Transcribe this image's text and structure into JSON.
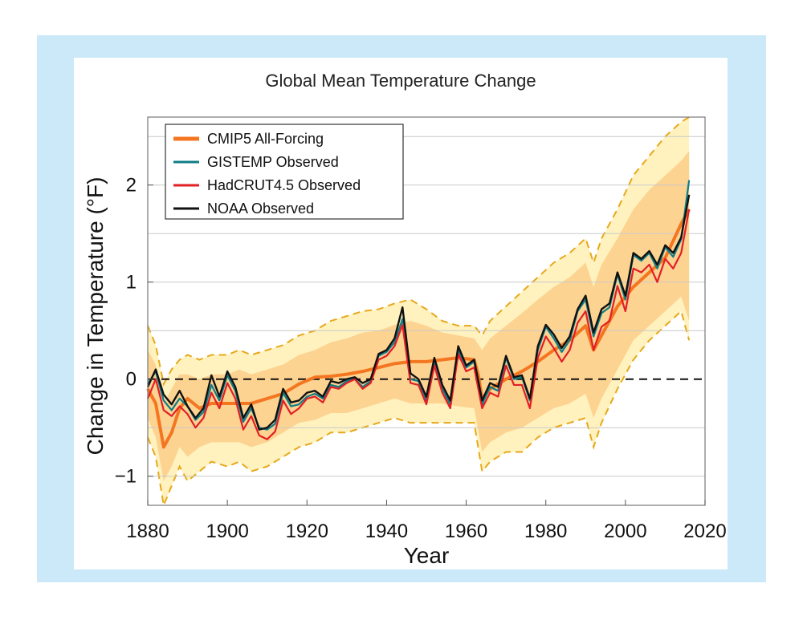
{
  "colors": {
    "frame": "#cbe9f8",
    "outer_band": "#fff2bf",
    "inner_band": "#fdd391",
    "band_edge": "#e7a81a",
    "cmip5": "#f47621",
    "gistemp": "#0f7c86",
    "hadcrut": "#e11f26",
    "noaa": "#111111"
  },
  "chart_data": {
    "type": "line",
    "title": "Global Mean Temperature Change",
    "xlabel": "Year",
    "ylabel": "Change in Temperature (°F)",
    "xlim": [
      1880,
      2020
    ],
    "ylim": [
      -1.3,
      2.7
    ],
    "x_ticks": [
      1880,
      1900,
      1920,
      1940,
      1960,
      1980,
      2000,
      2020
    ],
    "y_ticks": [
      {
        "value": -1,
        "label": "−1"
      },
      {
        "value": 0,
        "label": "0"
      },
      {
        "value": 1,
        "label": "1"
      },
      {
        "value": 2,
        "label": "2"
      }
    ],
    "grid": "horizontal",
    "reference_line": {
      "y": 0,
      "style": "dashed"
    },
    "legend_position": "top-left",
    "series": [
      {
        "name": "CMIP5 All-Forcing",
        "key": "cmip5",
        "x": [
          1880,
          1882,
          1884,
          1886,
          1888,
          1890,
          1893,
          1896,
          1900,
          1903,
          1906,
          1910,
          1914,
          1918,
          1922,
          1926,
          1930,
          1934,
          1938,
          1942,
          1946,
          1950,
          1954,
          1958,
          1962,
          1963,
          1964,
          1966,
          1970,
          1974,
          1978,
          1982,
          1986,
          1990,
          1992,
          1994,
          1998,
          2002,
          2006,
          2010,
          2014,
          2016
        ],
        "y": [
          -0.1,
          -0.25,
          -0.7,
          -0.55,
          -0.3,
          -0.2,
          -0.3,
          -0.25,
          -0.25,
          -0.25,
          -0.25,
          -0.2,
          -0.15,
          -0.05,
          0.02,
          0.03,
          0.05,
          0.08,
          0.12,
          0.16,
          0.18,
          0.18,
          0.2,
          0.22,
          0.2,
          0.05,
          -0.2,
          -0.1,
          0.0,
          0.08,
          0.18,
          0.3,
          0.4,
          0.55,
          0.3,
          0.45,
          0.75,
          0.95,
          1.1,
          1.25,
          1.6,
          1.75
        ]
      },
      {
        "name": "GISTEMP Observed",
        "key": "gistemp",
        "x": [
          1880,
          1882,
          1884,
          1886,
          1888,
          1890,
          1892,
          1894,
          1896,
          1898,
          1900,
          1902,
          1904,
          1906,
          1908,
          1910,
          1912,
          1914,
          1916,
          1918,
          1920,
          1922,
          1924,
          1926,
          1928,
          1930,
          1932,
          1934,
          1936,
          1938,
          1940,
          1942,
          1944,
          1946,
          1948,
          1950,
          1952,
          1954,
          1956,
          1958,
          1960,
          1962,
          1964,
          1966,
          1968,
          1970,
          1972,
          1974,
          1976,
          1978,
          1980,
          1982,
          1984,
          1986,
          1988,
          1990,
          1992,
          1994,
          1996,
          1998,
          2000,
          2002,
          2004,
          2006,
          2008,
          2010,
          2012,
          2014,
          2016
        ],
        "y": [
          -0.05,
          0.08,
          -0.22,
          -0.32,
          -0.2,
          -0.28,
          -0.42,
          -0.34,
          -0.06,
          -0.22,
          0.04,
          -0.12,
          -0.44,
          -0.3,
          -0.5,
          -0.52,
          -0.46,
          -0.14,
          -0.28,
          -0.26,
          -0.18,
          -0.15,
          -0.2,
          -0.06,
          -0.08,
          -0.02,
          0.0,
          -0.08,
          -0.02,
          0.24,
          0.28,
          0.38,
          0.62,
          0.0,
          -0.02,
          -0.22,
          0.18,
          -0.1,
          -0.26,
          0.3,
          0.12,
          0.18,
          -0.26,
          -0.08,
          -0.12,
          0.22,
          0.0,
          0.02,
          -0.22,
          0.3,
          0.54,
          0.42,
          0.28,
          0.4,
          0.7,
          0.82,
          0.44,
          0.68,
          0.74,
          1.08,
          0.82,
          1.28,
          1.22,
          1.3,
          1.14,
          1.36,
          1.26,
          1.44,
          2.05
        ]
      },
      {
        "name": "HadCRUT4.5 Observed",
        "key": "hadcrut",
        "x": [
          1880,
          1882,
          1884,
          1886,
          1888,
          1890,
          1892,
          1894,
          1896,
          1898,
          1900,
          1902,
          1904,
          1906,
          1908,
          1910,
          1912,
          1914,
          1916,
          1918,
          1920,
          1922,
          1924,
          1926,
          1928,
          1930,
          1932,
          1934,
          1936,
          1938,
          1940,
          1942,
          1944,
          1946,
          1948,
          1950,
          1952,
          1954,
          1956,
          1958,
          1960,
          1962,
          1964,
          1966,
          1968,
          1970,
          1972,
          1974,
          1976,
          1978,
          1980,
          1982,
          1984,
          1986,
          1988,
          1990,
          1992,
          1994,
          1996,
          1998,
          2000,
          2002,
          2004,
          2006,
          2008,
          2010,
          2012,
          2014,
          2016
        ],
        "y": [
          -0.2,
          0.0,
          -0.32,
          -0.38,
          -0.28,
          -0.36,
          -0.5,
          -0.4,
          -0.14,
          -0.3,
          -0.04,
          -0.2,
          -0.52,
          -0.38,
          -0.58,
          -0.62,
          -0.54,
          -0.22,
          -0.36,
          -0.3,
          -0.2,
          -0.18,
          -0.24,
          -0.08,
          -0.1,
          -0.04,
          0.0,
          -0.1,
          -0.04,
          0.2,
          0.24,
          0.34,
          0.56,
          -0.04,
          -0.06,
          -0.26,
          0.14,
          -0.14,
          -0.3,
          0.26,
          0.08,
          0.12,
          -0.3,
          -0.14,
          -0.18,
          0.14,
          -0.06,
          -0.06,
          -0.3,
          0.22,
          0.44,
          0.32,
          0.18,
          0.3,
          0.58,
          0.7,
          0.3,
          0.54,
          0.6,
          0.96,
          0.7,
          1.14,
          1.1,
          1.18,
          1.0,
          1.24,
          1.14,
          1.3,
          1.75
        ]
      },
      {
        "name": "NOAA Observed",
        "key": "noaa",
        "x": [
          1880,
          1882,
          1884,
          1886,
          1888,
          1890,
          1892,
          1894,
          1896,
          1898,
          1900,
          1902,
          1904,
          1906,
          1908,
          1910,
          1912,
          1914,
          1916,
          1918,
          1920,
          1922,
          1924,
          1926,
          1928,
          1930,
          1932,
          1934,
          1936,
          1938,
          1940,
          1942,
          1944,
          1946,
          1948,
          1950,
          1952,
          1954,
          1956,
          1958,
          1960,
          1962,
          1964,
          1966,
          1968,
          1970,
          1972,
          1974,
          1976,
          1978,
          1980,
          1982,
          1984,
          1986,
          1988,
          1990,
          1992,
          1994,
          1996,
          1998,
          2000,
          2002,
          2004,
          2006,
          2008,
          2010,
          2012,
          2014,
          2016
        ],
        "y": [
          -0.08,
          0.1,
          -0.16,
          -0.26,
          -0.12,
          -0.28,
          -0.4,
          -0.3,
          0.04,
          -0.18,
          0.08,
          -0.08,
          -0.4,
          -0.26,
          -0.52,
          -0.5,
          -0.42,
          -0.1,
          -0.24,
          -0.22,
          -0.14,
          -0.12,
          -0.18,
          -0.02,
          -0.04,
          0.0,
          0.02,
          -0.04,
          0.0,
          0.26,
          0.3,
          0.42,
          0.74,
          0.06,
          0.0,
          -0.18,
          0.22,
          -0.06,
          -0.22,
          0.34,
          0.14,
          0.2,
          -0.22,
          -0.04,
          -0.08,
          0.24,
          0.02,
          0.04,
          -0.2,
          0.34,
          0.56,
          0.46,
          0.32,
          0.44,
          0.72,
          0.86,
          0.48,
          0.72,
          0.78,
          1.1,
          0.86,
          1.3,
          1.24,
          1.32,
          1.18,
          1.38,
          1.3,
          1.46,
          1.9
        ]
      }
    ],
    "bands": [
      {
        "key": "outer_band",
        "x": [
          1880,
          1882,
          1884,
          1886,
          1888,
          1890,
          1893,
          1896,
          1900,
          1903,
          1906,
          1910,
          1914,
          1918,
          1922,
          1926,
          1930,
          1934,
          1938,
          1942,
          1946,
          1950,
          1954,
          1958,
          1962,
          1964,
          1966,
          1970,
          1974,
          1978,
          1982,
          1986,
          1990,
          1992,
          1994,
          1998,
          2002,
          2006,
          2010,
          2014,
          2016
        ],
        "upper": [
          0.55,
          0.35,
          -0.05,
          0.1,
          0.2,
          0.25,
          0.2,
          0.25,
          0.25,
          0.3,
          0.25,
          0.3,
          0.35,
          0.45,
          0.5,
          0.6,
          0.65,
          0.7,
          0.72,
          0.78,
          0.82,
          0.72,
          0.6,
          0.55,
          0.55,
          0.45,
          0.6,
          0.75,
          0.9,
          1.05,
          1.2,
          1.3,
          1.45,
          1.2,
          1.45,
          1.75,
          2.1,
          2.3,
          2.5,
          2.65,
          2.7
        ],
        "lower": [
          -0.6,
          -0.8,
          -1.3,
          -1.1,
          -0.9,
          -1.05,
          -0.95,
          -0.85,
          -0.9,
          -0.85,
          -0.95,
          -0.9,
          -0.8,
          -0.7,
          -0.65,
          -0.55,
          -0.55,
          -0.5,
          -0.45,
          -0.4,
          -0.45,
          -0.45,
          -0.45,
          -0.45,
          -0.45,
          -0.95,
          -0.85,
          -0.75,
          -0.75,
          -0.6,
          -0.5,
          -0.45,
          -0.4,
          -0.7,
          -0.45,
          -0.1,
          0.2,
          0.4,
          0.55,
          0.7,
          0.4
        ]
      },
      {
        "key": "inner_band",
        "x": [
          1880,
          1882,
          1884,
          1886,
          1888,
          1890,
          1893,
          1896,
          1900,
          1903,
          1906,
          1910,
          1914,
          1918,
          1922,
          1926,
          1930,
          1934,
          1938,
          1942,
          1946,
          1950,
          1954,
          1958,
          1962,
          1964,
          1966,
          1970,
          1974,
          1978,
          1982,
          1986,
          1990,
          1992,
          1994,
          1998,
          2002,
          2006,
          2010,
          2014,
          2016
        ],
        "upper": [
          0.3,
          0.15,
          -0.25,
          -0.1,
          0.05,
          0.05,
          0.0,
          0.05,
          0.05,
          0.1,
          0.05,
          0.1,
          0.15,
          0.25,
          0.3,
          0.38,
          0.42,
          0.48,
          0.5,
          0.56,
          0.6,
          0.55,
          0.48,
          0.45,
          0.42,
          0.3,
          0.42,
          0.55,
          0.68,
          0.82,
          0.95,
          1.05,
          1.2,
          0.95,
          1.18,
          1.45,
          1.75,
          1.95,
          2.1,
          2.25,
          2.35
        ],
        "lower": [
          -0.4,
          -0.6,
          -1.05,
          -0.9,
          -0.7,
          -0.8,
          -0.7,
          -0.65,
          -0.65,
          -0.65,
          -0.7,
          -0.65,
          -0.55,
          -0.45,
          -0.42,
          -0.35,
          -0.35,
          -0.3,
          -0.25,
          -0.2,
          -0.25,
          -0.25,
          -0.25,
          -0.28,
          -0.3,
          -0.75,
          -0.65,
          -0.55,
          -0.5,
          -0.4,
          -0.3,
          -0.25,
          -0.15,
          -0.4,
          -0.2,
          0.1,
          0.4,
          0.55,
          0.7,
          0.85,
          0.6
        ]
      }
    ]
  }
}
